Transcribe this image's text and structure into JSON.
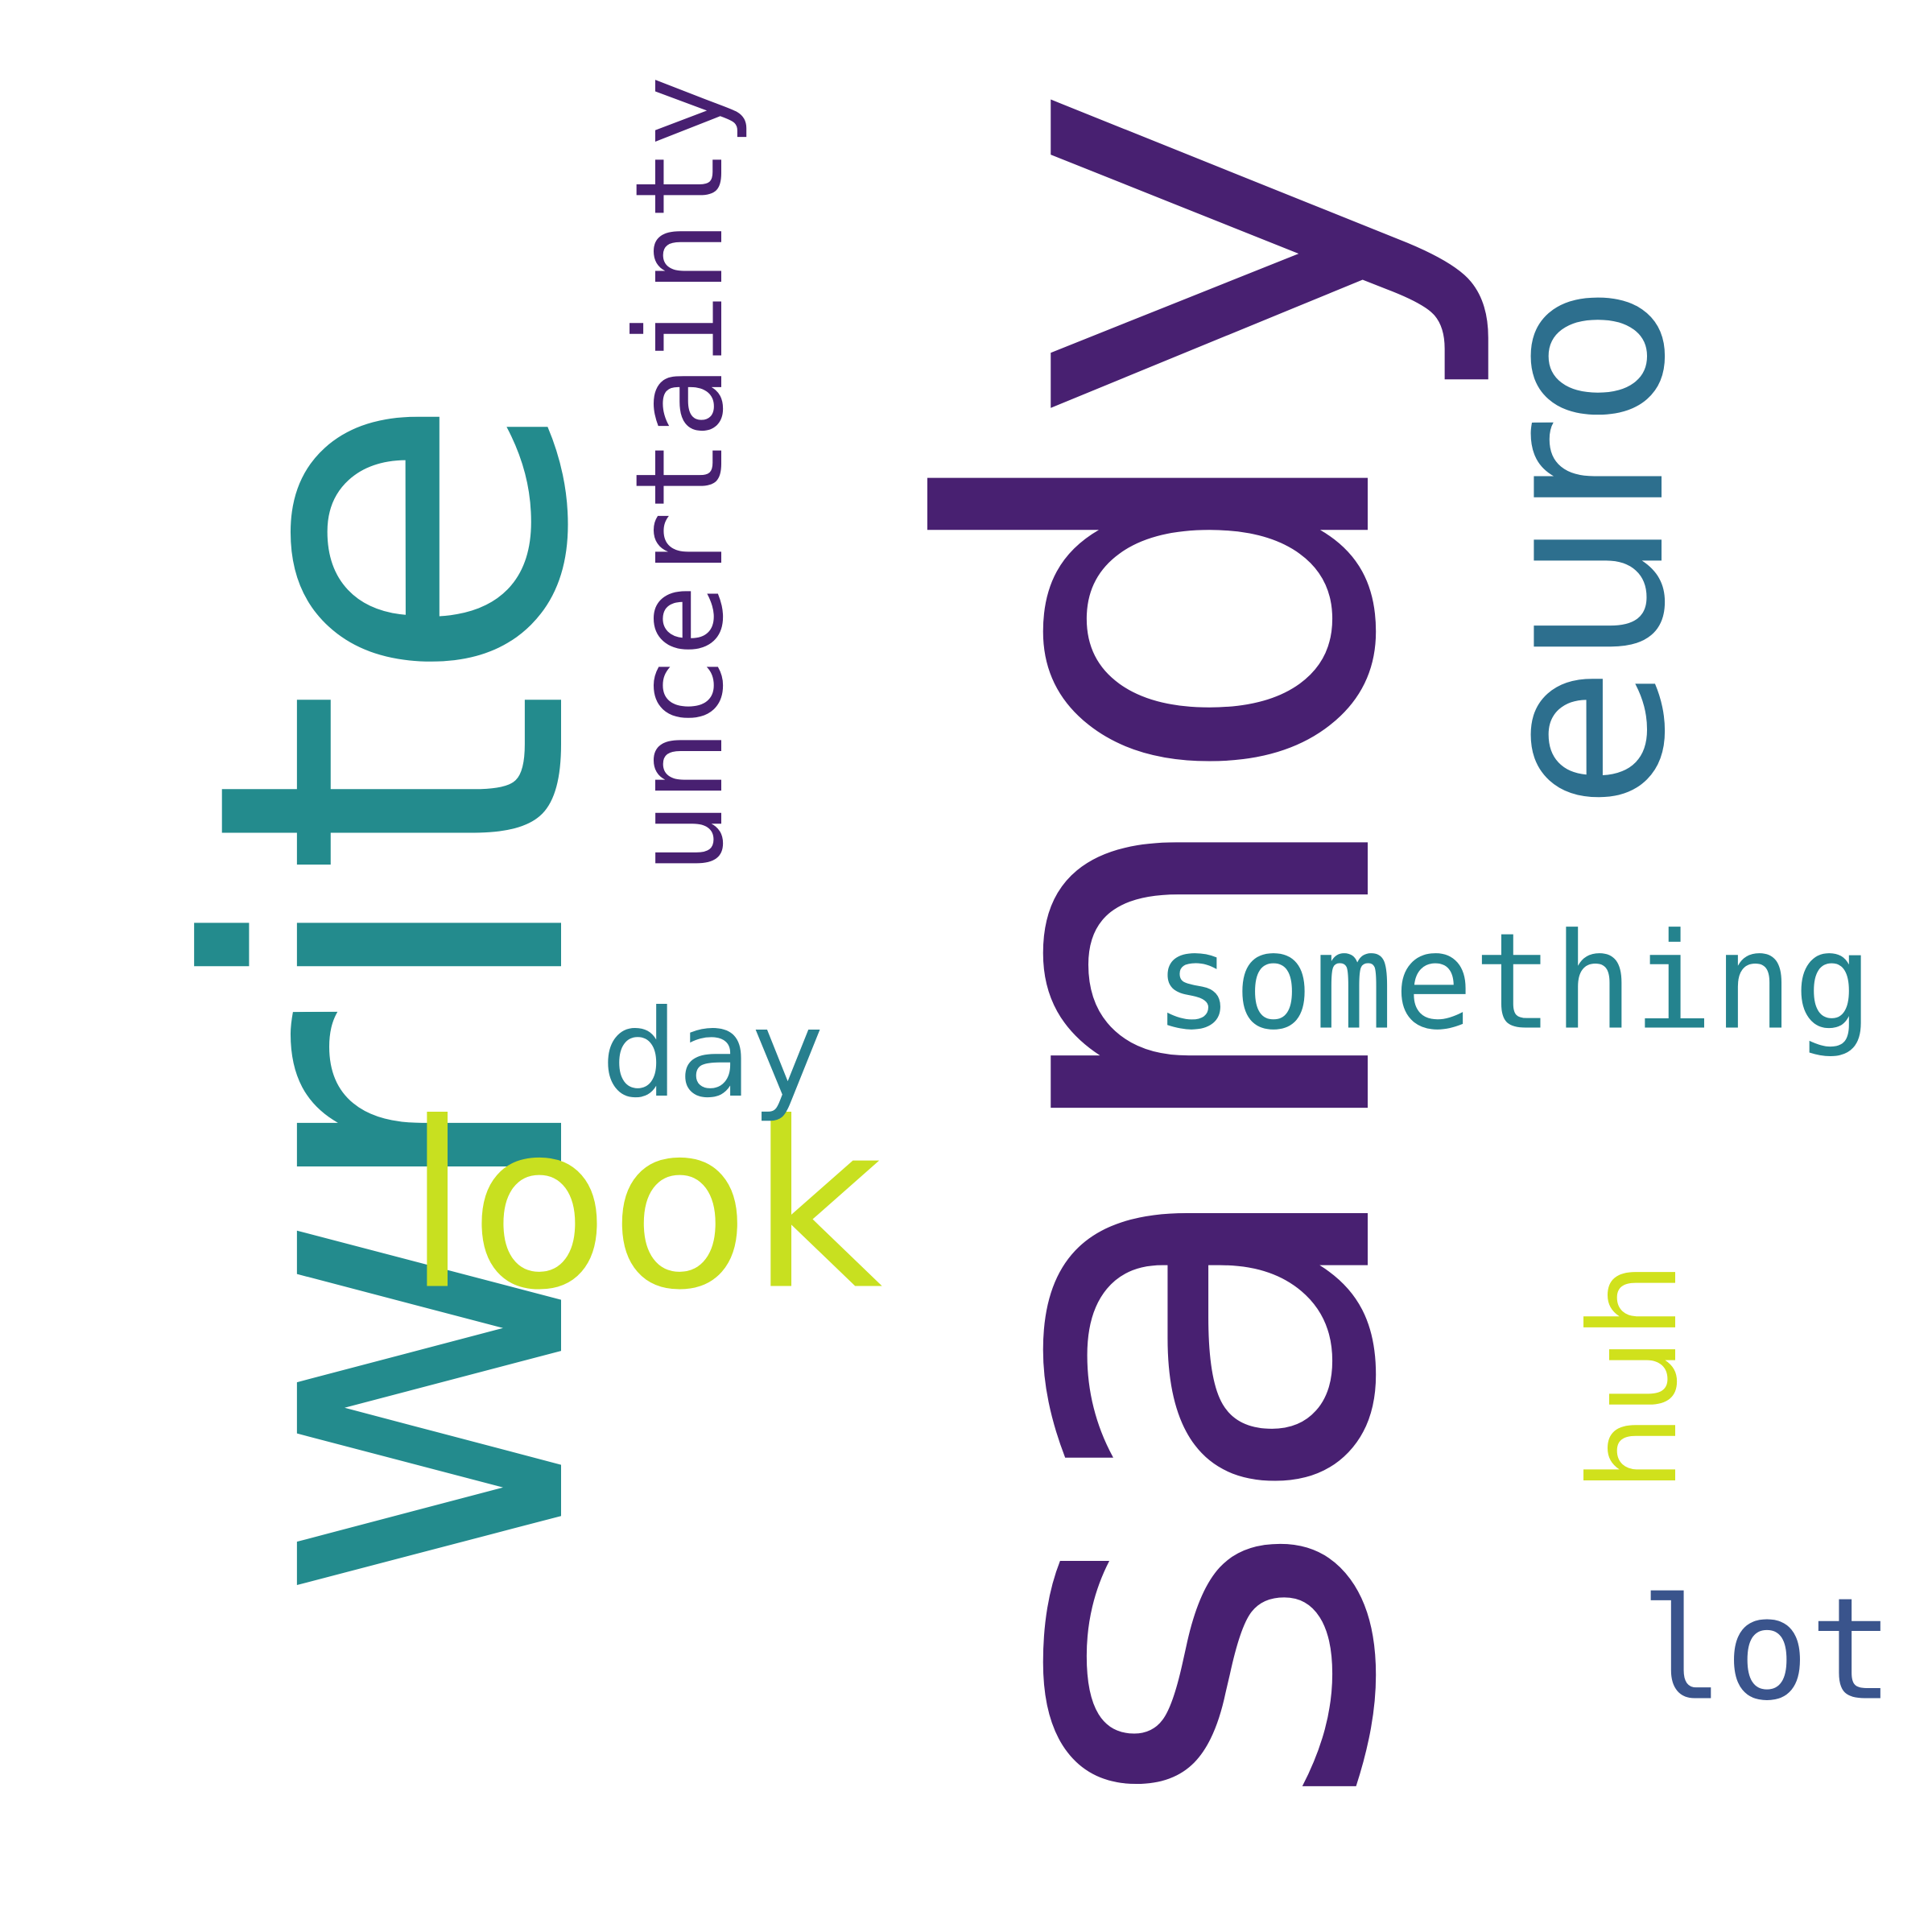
{
  "words": [
    {
      "key": "sandy",
      "text": "sandy",
      "color": "#482071",
      "orientation": "vertical"
    },
    {
      "key": "write",
      "text": "write",
      "color": "#238b8d",
      "orientation": "vertical"
    },
    {
      "key": "euro",
      "text": "euro",
      "color": "#2d6f8e",
      "orientation": "vertical"
    },
    {
      "key": "uncertainty",
      "text": "uncertainty",
      "color": "#482071",
      "orientation": "vertical"
    },
    {
      "key": "something",
      "text": "something",
      "color": "#24838e",
      "orientation": "horizontal"
    },
    {
      "key": "look",
      "text": "look",
      "color": "#c8e020",
      "orientation": "horizontal"
    },
    {
      "key": "day",
      "text": "day",
      "color": "#277f8e",
      "orientation": "horizontal"
    },
    {
      "key": "huh",
      "text": "huh",
      "color": "#d0e11c",
      "orientation": "vertical"
    },
    {
      "key": "lot",
      "text": "lot",
      "color": "#3a548c",
      "orientation": "horizontal"
    }
  ]
}
